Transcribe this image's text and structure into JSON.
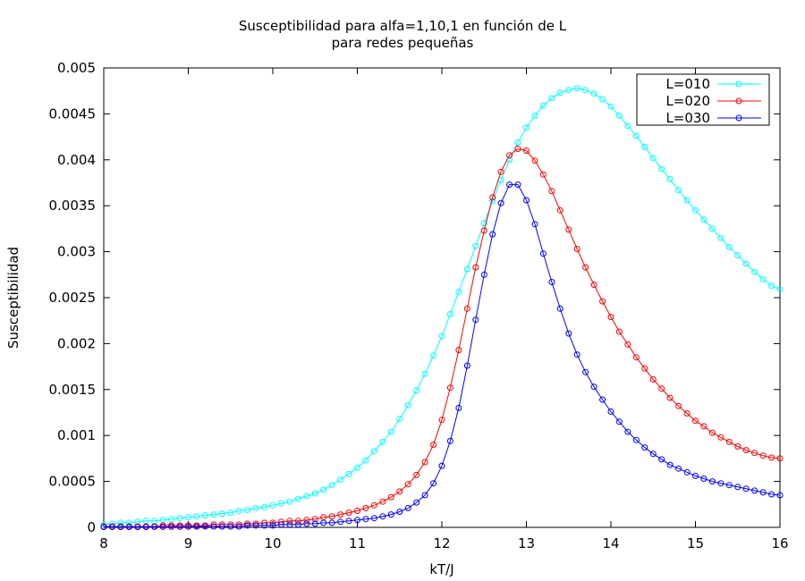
{
  "chart_data": {
    "type": "line",
    "title": "Susceptibilidad para alfa=1,10,1 en función de L",
    "subtitle": "para redes pequeñas",
    "xlabel": "kT/J",
    "ylabel": "Susceptibilidad",
    "xlim": [
      8,
      16
    ],
    "ylim": [
      0,
      0.005
    ],
    "xticks": [
      "8",
      "9",
      "10",
      "11",
      "12",
      "13",
      "14",
      "15",
      "16"
    ],
    "xtick_values": [
      8,
      9,
      10,
      11,
      12,
      13,
      14,
      15,
      16
    ],
    "yticks": [
      "0",
      "0.0005",
      "0.001",
      "0.0015",
      "0.002",
      "0.0025",
      "0.003",
      "0.0035",
      "0.004",
      "0.0045",
      "0.005"
    ],
    "ytick_values": [
      0,
      0.0005,
      0.001,
      0.0015,
      0.002,
      0.0025,
      0.003,
      0.0035,
      0.004,
      0.0045,
      0.005
    ],
    "grid": false,
    "legend_position": "top-right",
    "marker": "open-circle",
    "x": [
      8.0,
      8.1,
      8.2,
      8.3,
      8.4,
      8.5,
      8.6,
      8.7,
      8.8,
      8.9,
      9.0,
      9.1,
      9.2,
      9.3,
      9.4,
      9.5,
      9.6,
      9.7,
      9.8,
      9.9,
      10.0,
      10.1,
      10.2,
      10.3,
      10.4,
      10.5,
      10.6,
      10.7,
      10.8,
      10.9,
      11.0,
      11.1,
      11.2,
      11.3,
      11.4,
      11.5,
      11.6,
      11.7,
      11.8,
      11.9,
      12.0,
      12.1,
      12.2,
      12.3,
      12.4,
      12.5,
      12.6,
      12.7,
      12.8,
      12.9,
      13.0,
      13.1,
      13.2,
      13.3,
      13.4,
      13.5,
      13.6,
      13.7,
      13.8,
      13.9,
      14.0,
      14.1,
      14.2,
      14.3,
      14.4,
      14.5,
      14.6,
      14.7,
      14.8,
      14.9,
      15.0,
      15.1,
      15.2,
      15.3,
      15.4,
      15.5,
      15.6,
      15.7,
      15.8,
      15.9,
      16.0
    ],
    "series": [
      {
        "name": "L=010",
        "color": "#00ffff",
        "values": [
          3e-05,
          4e-05,
          5e-05,
          5e-05,
          6e-05,
          7e-05,
          7e-05,
          8e-05,
          9e-05,
          0.0001,
          0.00011,
          0.00012,
          0.00013,
          0.00014,
          0.00015,
          0.00016,
          0.00018,
          0.00019,
          0.00021,
          0.00022,
          0.00024,
          0.00026,
          0.00028,
          0.00031,
          0.00034,
          0.00037,
          0.00041,
          0.00046,
          0.00052,
          0.00058,
          0.00065,
          0.00073,
          0.00083,
          0.00093,
          0.00104,
          0.00118,
          0.00133,
          0.00149,
          0.00167,
          0.00187,
          0.00208,
          0.00232,
          0.00256,
          0.00281,
          0.00306,
          0.00331,
          0.00355,
          0.00378,
          0.004,
          0.00419,
          0.00435,
          0.00448,
          0.00459,
          0.00467,
          0.00473,
          0.00476,
          0.00478,
          0.00476,
          0.00472,
          0.00466,
          0.00458,
          0.00448,
          0.00437,
          0.00426,
          0.00414,
          0.00402,
          0.0039,
          0.00379,
          0.00367,
          0.00356,
          0.00345,
          0.00335,
          0.00325,
          0.00315,
          0.00305,
          0.00296,
          0.00287,
          0.00278,
          0.0027,
          0.00263,
          0.00259
        ]
      },
      {
        "name": "L=020",
        "color": "#ff0000",
        "values": [
          1e-05,
          1e-05,
          1e-05,
          1e-05,
          1e-05,
          1e-05,
          1e-05,
          2e-05,
          2e-05,
          2e-05,
          2e-05,
          2e-05,
          2e-05,
          3e-05,
          3e-05,
          3e-05,
          3e-05,
          4e-05,
          4e-05,
          5e-05,
          5e-05,
          6e-05,
          7e-05,
          7e-05,
          8e-05,
          9e-05,
          0.00011,
          0.00012,
          0.00014,
          0.00016,
          0.00018,
          0.00021,
          0.00024,
          0.00028,
          0.00033,
          0.00039,
          0.00047,
          0.00057,
          0.00071,
          0.0009,
          0.00117,
          0.00152,
          0.00193,
          0.00238,
          0.00283,
          0.00323,
          0.00359,
          0.00387,
          0.00405,
          0.00412,
          0.0041,
          0.00399,
          0.00384,
          0.00366,
          0.00345,
          0.00324,
          0.00303,
          0.00283,
          0.00264,
          0.00246,
          0.00229,
          0.00213,
          0.00199,
          0.00185,
          0.00173,
          0.00161,
          0.00151,
          0.00141,
          0.00132,
          0.00124,
          0.00116,
          0.0011,
          0.00103,
          0.00098,
          0.00093,
          0.00088,
          0.00084,
          0.00081,
          0.00078,
          0.00076,
          0.00075
        ]
      },
      {
        "name": "L=030",
        "color": "#0000ff",
        "values": [
          5e-06,
          5e-06,
          5e-06,
          5e-06,
          5e-06,
          5e-06,
          6e-06,
          6e-06,
          7e-06,
          7e-06,
          8e-06,
          9e-06,
          1e-05,
          1e-05,
          1e-05,
          1e-05,
          1e-05,
          2e-05,
          2e-05,
          2e-05,
          2e-05,
          3e-05,
          3e-05,
          3e-05,
          4e-05,
          4e-05,
          5e-05,
          5e-05,
          6e-05,
          7e-05,
          8e-05,
          9e-05,
          0.0001,
          0.00012,
          0.00014,
          0.00017,
          0.00021,
          0.00027,
          0.00035,
          0.00048,
          0.00067,
          0.00094,
          0.0013,
          0.00176,
          0.00226,
          0.00275,
          0.00319,
          0.00353,
          0.00373,
          0.00373,
          0.00356,
          0.0033,
          0.00298,
          0.00267,
          0.00238,
          0.00211,
          0.00188,
          0.00169,
          0.00153,
          0.00139,
          0.00126,
          0.00115,
          0.00104,
          0.00095,
          0.00087,
          0.0008,
          0.00074,
          0.00068,
          0.00064,
          0.0006,
          0.00056,
          0.00053,
          0.0005,
          0.00048,
          0.00046,
          0.00044,
          0.00042,
          0.0004,
          0.00038,
          0.00036,
          0.00035
        ]
      }
    ]
  }
}
